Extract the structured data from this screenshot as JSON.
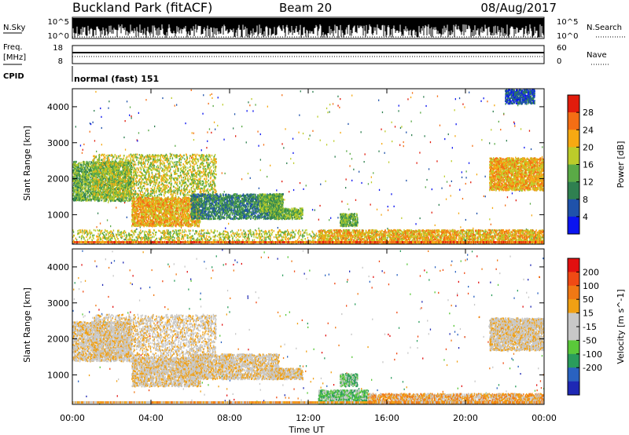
{
  "header": {
    "site": "Buckland Park (fitACF)",
    "beam": "Beam 20",
    "date": "08/Aug/2017"
  },
  "strip_labels": {
    "nsky": "N.Sky",
    "nsky_top": "10^5",
    "nsky_bottom": "10^0",
    "nsearch": "N.Search",
    "nsearch_top": "10^5",
    "nsearch_bottom": "10^0",
    "freq": "Freq.",
    "freq_unit": "[MHz]",
    "freq_top": "18",
    "freq_bottom": "8",
    "nave": "Nave",
    "nave_top": "60",
    "nave_bottom": "0",
    "cpid": "CPID",
    "cpid_value": "normal (fast) 151"
  },
  "chart_data": [
    {
      "type": "heatmap",
      "title": "",
      "xlabel": "Time UT",
      "ylabel": "Slant Range [km]",
      "xticks": [
        "00:00",
        "04:00",
        "08:00",
        "12:00",
        "16:00",
        "20:00",
        "00:00"
      ],
      "xlim_hours": [
        0,
        24
      ],
      "yticks": [
        "1000",
        "2000",
        "3000",
        "4000"
      ],
      "ylim": [
        180,
        4500
      ],
      "colorbar": {
        "label": "Power [dB]",
        "ticks": [
          "4",
          "8",
          "12",
          "16",
          "20",
          "24",
          "28"
        ],
        "colors": [
          "#0a14f0",
          "#1f52aa",
          "#2f8050",
          "#5aaa46",
          "#bccc2a",
          "#f6a912",
          "#f46e14",
          "#e21c0c"
        ]
      },
      "regions": [
        {
          "t": [
            0.0,
            3.0
          ],
          "r": [
            1400,
            2500
          ],
          "level": 3
        },
        {
          "t": [
            1.0,
            7.3
          ],
          "r": [
            1500,
            2700
          ],
          "level": 4
        },
        {
          "t": [
            3.0,
            6.5
          ],
          "r": [
            700,
            1500
          ],
          "level": 5
        },
        {
          "t": [
            6.0,
            10.5
          ],
          "r": [
            900,
            1600
          ],
          "level": 2
        },
        {
          "t": [
            9.5,
            10.7
          ],
          "r": [
            1100,
            1600
          ],
          "level": 3
        },
        {
          "t": [
            10.0,
            11.7
          ],
          "r": [
            900,
            1200
          ],
          "level": 3
        },
        {
          "t": [
            13.6,
            14.5
          ],
          "r": [
            700,
            1050
          ],
          "level": 3
        },
        {
          "t": [
            0.0,
            24.0
          ],
          "r": [
            200,
            600
          ],
          "level": 4
        },
        {
          "t": [
            12.5,
            24.0
          ],
          "r": [
            200,
            600
          ],
          "level": 5
        },
        {
          "t": [
            21.2,
            24.0
          ],
          "r": [
            1700,
            2600
          ],
          "level": 5
        },
        {
          "t": [
            22.0,
            23.5
          ],
          "r": [
            4100,
            4500
          ],
          "level": 1
        }
      ]
    },
    {
      "type": "heatmap",
      "title": "",
      "xlabel": "Time UT",
      "ylabel": "Slant Range [km]",
      "xticks": [
        "00:00",
        "04:00",
        "08:00",
        "12:00",
        "16:00",
        "20:00",
        "00:00"
      ],
      "xlim_hours": [
        0,
        24
      ],
      "yticks": [
        "1000",
        "2000",
        "3000",
        "4000"
      ],
      "ylim": [
        180,
        4500
      ],
      "colorbar": {
        "label": "Velocity [m s^-1]",
        "ticks": [
          "200",
          "100",
          "50",
          "15",
          "-15",
          "-50",
          "-100",
          "-200"
        ],
        "colors": [
          "#1e28b4",
          "#2a62c0",
          "#2a9c5c",
          "#5ac83a",
          "#c8c8c8",
          "#c8c8c8",
          "#f0a014",
          "#f07814",
          "#f04a14",
          "#e21010"
        ]
      },
      "regions": [
        {
          "t": [
            0.0,
            3.0
          ],
          "r": [
            1400,
            2500
          ],
          "level": 5
        },
        {
          "t": [
            1.0,
            7.3
          ],
          "r": [
            1500,
            2700
          ],
          "level": 5
        },
        {
          "t": [
            3.0,
            6.5
          ],
          "r": [
            700,
            1500
          ],
          "level": 5
        },
        {
          "t": [
            6.0,
            10.5
          ],
          "r": [
            900,
            1600
          ],
          "level": 5
        },
        {
          "t": [
            10.0,
            11.7
          ],
          "r": [
            900,
            1200
          ],
          "level": 5
        },
        {
          "t": [
            13.6,
            14.5
          ],
          "r": [
            700,
            1050
          ],
          "level": 3
        },
        {
          "t": [
            12.5,
            15.0
          ],
          "r": [
            200,
            600
          ],
          "level": 3
        },
        {
          "t": [
            15.0,
            24.0
          ],
          "r": [
            200,
            500
          ],
          "level": 6
        },
        {
          "t": [
            21.2,
            24.0
          ],
          "r": [
            1700,
            2600
          ],
          "level": 5
        }
      ]
    }
  ]
}
